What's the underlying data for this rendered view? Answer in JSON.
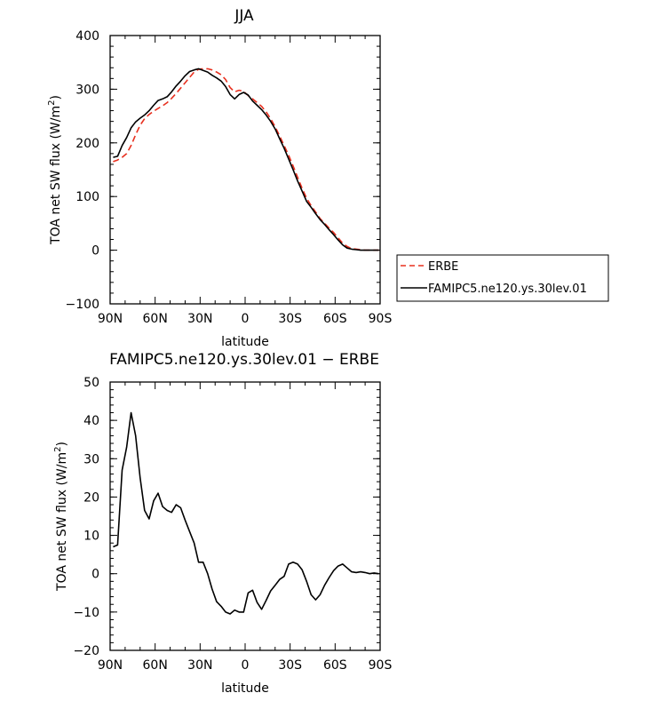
{
  "chart_data": [
    {
      "type": "line",
      "title": "JJA",
      "xlabel": "latitude",
      "ylabel": "TOA net SW flux (W/m",
      "ylabel_sup": "2",
      "ylabel_close": ")",
      "xlim": [
        90,
        -90
      ],
      "ylim": [
        -100,
        400
      ],
      "xticks": [
        90,
        60,
        30,
        0,
        -30,
        -60,
        -90
      ],
      "xtick_labels": [
        "90N",
        "60N",
        "30N",
        "0",
        "30S",
        "60S",
        "90S"
      ],
      "yticks": [
        -100,
        0,
        100,
        200,
        300,
        400
      ],
      "ytick_labels": [
        "−100",
        "0",
        "100",
        "200",
        "300",
        "400"
      ],
      "grid": false,
      "legend_position": "outside-right",
      "series": [
        {
          "name": "ERBE",
          "color": "#e8301f",
          "dash": "dashed",
          "x": [
            88,
            85,
            82,
            79,
            76,
            73,
            70,
            67,
            64,
            61,
            58,
            55,
            52,
            49,
            46,
            43,
            40,
            37,
            34,
            31,
            28,
            25,
            22,
            19,
            16,
            13,
            10,
            7,
            4,
            1,
            -2,
            -5,
            -8,
            -11,
            -14,
            -17,
            -20,
            -23,
            -26,
            -29,
            -32,
            -35,
            -38,
            -41,
            -44,
            -47,
            -50,
            -53,
            -56,
            -59,
            -62,
            -65,
            -68,
            -71,
            -74,
            -77,
            -80,
            -83,
            -86,
            -89
          ],
          "y": [
            165,
            168,
            173,
            180,
            195,
            215,
            233,
            245,
            253,
            259,
            264,
            269,
            275,
            283,
            292,
            302,
            312,
            322,
            332,
            337,
            338,
            338,
            336,
            332,
            327,
            318,
            303,
            295,
            298,
            296,
            288,
            282,
            275,
            268,
            258,
            245,
            230,
            213,
            195,
            177,
            157,
            136,
            115,
            97,
            83,
            71,
            59,
            50,
            41,
            33,
            23,
            13,
            7,
            3,
            2,
            1,
            0,
            0,
            0,
            0
          ]
        },
        {
          "name": "FAMIPC5.ne120.ys.30lev.01",
          "color": "#000000",
          "dash": "solid",
          "x": [
            88,
            85,
            82,
            79,
            76,
            73,
            70,
            67,
            64,
            61,
            58,
            55,
            52,
            49,
            46,
            43,
            40,
            37,
            34,
            31,
            28,
            25,
            22,
            19,
            16,
            13,
            10,
            7,
            4,
            1,
            -2,
            -5,
            -8,
            -11,
            -14,
            -17,
            -20,
            -23,
            -26,
            -29,
            -32,
            -35,
            -38,
            -41,
            -44,
            -47,
            -50,
            -53,
            -56,
            -59,
            -62,
            -65,
            -68,
            -71,
            -74,
            -77,
            -80,
            -83,
            -86,
            -89
          ],
          "y": [
            173,
            175,
            195,
            210,
            228,
            239,
            246,
            252,
            260,
            270,
            279,
            282,
            286,
            295,
            306,
            315,
            325,
            333,
            336,
            338,
            335,
            332,
            326,
            321,
            315,
            305,
            290,
            282,
            290,
            294,
            289,
            278,
            270,
            262,
            252,
            240,
            226,
            208,
            190,
            170,
            150,
            129,
            110,
            91,
            80,
            68,
            57,
            48,
            38,
            29,
            19,
            10,
            4,
            2,
            1,
            0,
            0,
            0,
            0,
            0
          ]
        }
      ]
    },
    {
      "type": "line",
      "title": "FAMIPC5.ne120.ys.30lev.01 − ERBE",
      "xlabel": "latitude",
      "ylabel": "TOA net SW flux (W/m",
      "ylabel_sup": "2",
      "ylabel_close": ")",
      "xlim": [
        90,
        -90
      ],
      "ylim": [
        -20,
        50
      ],
      "xticks": [
        90,
        60,
        30,
        0,
        -30,
        -60,
        -90
      ],
      "xtick_labels": [
        "90N",
        "60N",
        "30N",
        "0",
        "30S",
        "60S",
        "90S"
      ],
      "yticks": [
        -20,
        -10,
        0,
        10,
        20,
        30,
        40,
        50
      ],
      "ytick_labels": [
        "−20",
        "−10",
        "0",
        "10",
        "20",
        "30",
        "40",
        "50"
      ],
      "grid": false,
      "series": [
        {
          "color": "#000000",
          "dash": "solid",
          "x": [
            88,
            85,
            82,
            79,
            76,
            73,
            70,
            67,
            64,
            61,
            58,
            55,
            52,
            49,
            46,
            43,
            40,
            37,
            34,
            31,
            28,
            25,
            22,
            19,
            16,
            13,
            10,
            7,
            4,
            1,
            -2,
            -5,
            -8,
            -11,
            -14,
            -17,
            -20,
            -23,
            -26,
            -29,
            -32,
            -35,
            -38,
            -41,
            -44,
            -47,
            -50,
            -53,
            -56,
            -59,
            -62,
            -65,
            -68,
            -71,
            -74,
            -77,
            -80,
            -83,
            -86,
            -89
          ],
          "y": [
            7,
            7.5,
            27,
            33,
            42,
            36,
            25,
            16.5,
            14.3,
            19,
            21,
            17.5,
            16.5,
            16,
            18,
            17.2,
            14,
            11,
            8,
            3,
            3,
            0,
            -4,
            -7.3,
            -8.5,
            -10,
            -10.5,
            -9.5,
            -10,
            -10,
            -5,
            -4.3,
            -7.5,
            -9.3,
            -7,
            -4.5,
            -3,
            -1.5,
            -0.7,
            2.5,
            3,
            2.5,
            1,
            -2,
            -5.5,
            -6.8,
            -5.5,
            -3,
            -1,
            0.8,
            2,
            2.5,
            1.5,
            0.5,
            0.3,
            0.5,
            0.3,
            0,
            0.2,
            0
          ]
        }
      ]
    }
  ]
}
